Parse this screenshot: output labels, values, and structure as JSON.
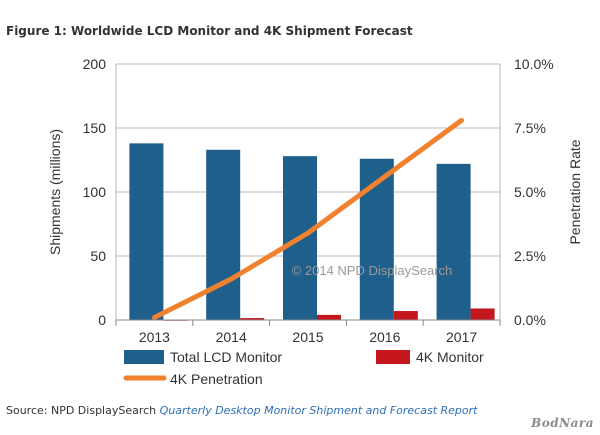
{
  "figure_title": "Figure 1: Worldwide LCD Monitor and 4K Shipment Forecast",
  "watermark": "© 2014 NPD DisplaySearch",
  "source": {
    "prefix": "Source: NPD DisplaySearch ",
    "report": "Quarterly Desktop Monitor Shipment and Forecast Report"
  },
  "brand": "BodNara",
  "colors": {
    "total_bar": "#1f5f8b",
    "k4_bar": "#c4161c",
    "penetration_line": "#f0822f",
    "grid": "#bbbbbb",
    "axis_text": "#333333"
  },
  "chart_data": {
    "type": "bar",
    "title": "Figure 1: Worldwide LCD Monitor and 4K Shipment Forecast",
    "categories": [
      "2013",
      "2014",
      "2015",
      "2016",
      "2017"
    ],
    "series": [
      {
        "name": "Total LCD Monitor",
        "type": "bar",
        "axis": "left",
        "values": [
          138,
          133,
          128,
          126,
          122
        ]
      },
      {
        "name": "4K Monitor",
        "type": "bar",
        "axis": "left",
        "values": [
          0.2,
          1.5,
          4,
          7,
          9
        ]
      },
      {
        "name": "4K Penetration",
        "type": "line",
        "axis": "right",
        "values": [
          0.1,
          1.6,
          3.4,
          5.6,
          7.8
        ]
      }
    ],
    "ylabel": "Shipments (millions)",
    "ylabel_right": "Penetration Rate",
    "ylim": [
      0,
      200
    ],
    "ylim_right": [
      0,
      10
    ],
    "yticks": [
      "0",
      "50",
      "100",
      "150",
      "200"
    ],
    "yticks_right": [
      "0.0%",
      "2.5%",
      "5.0%",
      "7.5%",
      "10.0%"
    ],
    "grid": true,
    "legend_position": "bottom"
  }
}
